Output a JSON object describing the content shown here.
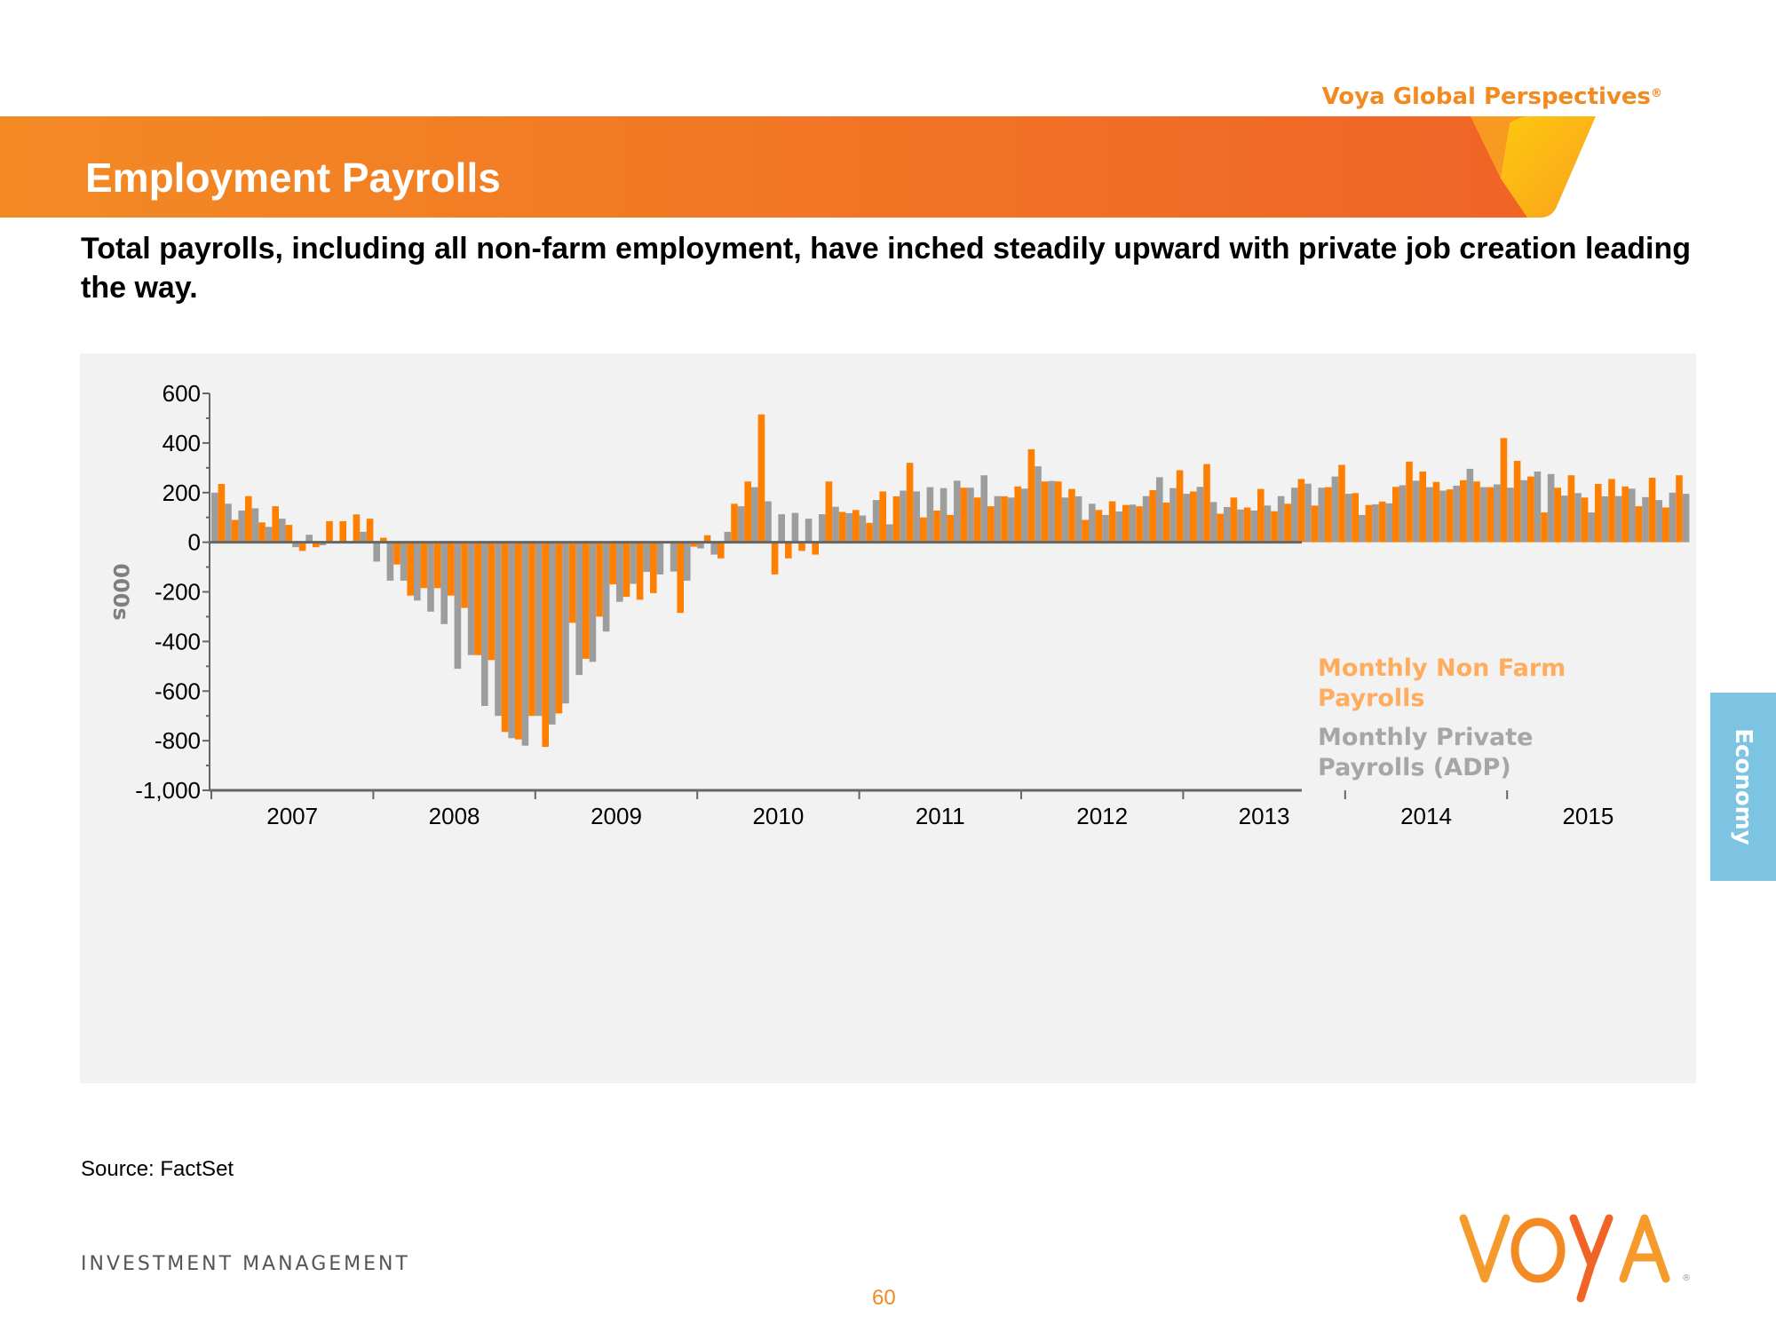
{
  "header": {
    "brand": "Voya Global Perspectives",
    "brand_mark": "®",
    "title": "Employment Payrolls",
    "subtitle": "Total payrolls, including all non-farm employment, have inched steadily upward with private job creation leading the way."
  },
  "side_tab": {
    "label": "Economy"
  },
  "footer": {
    "source": "Source: FactSet",
    "division": "INVESTMENT MANAGEMENT",
    "page_number": "60",
    "logo_text": "VOYA"
  },
  "colors": {
    "orange": "#ff8000",
    "gray": "#9d9d9d",
    "axis": "#666666",
    "panel": "#f2f2f2",
    "legend_orange": "#ffad5c",
    "legend_gray": "#a6a6a6",
    "tab_blue": "#7cc4e2"
  },
  "chart_data": {
    "type": "bar",
    "title": "",
    "xlabel": "",
    "ylabel": "000s",
    "ylim": [
      -1000,
      600
    ],
    "yticks": [
      600,
      400,
      200,
      0,
      -200,
      -400,
      -600,
      -800,
      -1000
    ],
    "ytick_labels": [
      "600",
      "400",
      "200",
      "0",
      "-200",
      "-400",
      "-600",
      "-800",
      "-1,000"
    ],
    "xtick_labels": [
      "2007",
      "2008",
      "2009",
      "2010",
      "2011",
      "2012",
      "2013",
      "2014",
      "2015"
    ],
    "grid": false,
    "legend_position": "right",
    "start": "2007-01",
    "series": [
      {
        "name": "Monthly Private Payrolls (ADP)",
        "color_key": "gray",
        "values": [
          200,
          155,
          128,
          137,
          62,
          95,
          -20,
          30,
          -12,
          2,
          0,
          42,
          -78,
          -155,
          -155,
          -235,
          -280,
          -330,
          -510,
          -455,
          -660,
          -700,
          -790,
          -820,
          -700,
          -735,
          -650,
          -535,
          -482,
          -360,
          -240,
          -168,
          -120,
          -130,
          -118,
          -155,
          -25,
          -50,
          42,
          145,
          222,
          165,
          113,
          118,
          95,
          113,
          143,
          117,
          108,
          170,
          72,
          208,
          205,
          222,
          218,
          248,
          220,
          270,
          186,
          180,
          216,
          306,
          247,
          180,
          185,
          155,
          110,
          124,
          152,
          186,
          262,
          218,
          195,
          223,
          162,
          142,
          132,
          128,
          148,
          186,
          220,
          236,
          220,
          265,
          195,
          110,
          153,
          157,
          230,
          248,
          222,
          208,
          228,
          296,
          222,
          233,
          220,
          250,
          285,
          275,
          188,
          198,
          120,
          185,
          186,
          216,
          182,
          170,
          200,
          195,
          218
        ]
      },
      {
        "name": "Monthly Non Farm Payrolls",
        "color_key": "orange",
        "values": [
          235,
          90,
          186,
          80,
          145,
          70,
          -35,
          -20,
          85,
          85,
          112,
          95,
          18,
          -90,
          -215,
          -185,
          -185,
          -215,
          -265,
          -455,
          -475,
          -765,
          -795,
          -700,
          -825,
          -690,
          -325,
          -470,
          -300,
          -170,
          -220,
          -232,
          -205,
          -5,
          -285,
          -18,
          28,
          -65,
          155,
          245,
          515,
          -130,
          -65,
          -35,
          -50,
          245,
          122,
          130,
          78,
          205,
          185,
          320,
          100,
          128,
          110,
          220,
          180,
          145,
          185,
          225,
          375,
          245,
          245,
          215,
          90,
          130,
          165,
          150,
          145,
          210,
          160,
          290,
          205,
          315,
          115,
          180,
          140,
          215,
          125,
          155,
          255,
          148,
          222,
          312,
          198,
          150,
          164,
          223,
          325,
          285,
          243,
          213,
          250,
          245,
          222,
          420,
          328,
          265,
          120,
          220,
          270,
          180,
          235,
          255,
          225,
          145,
          260,
          140,
          270
        ]
      }
    ]
  }
}
